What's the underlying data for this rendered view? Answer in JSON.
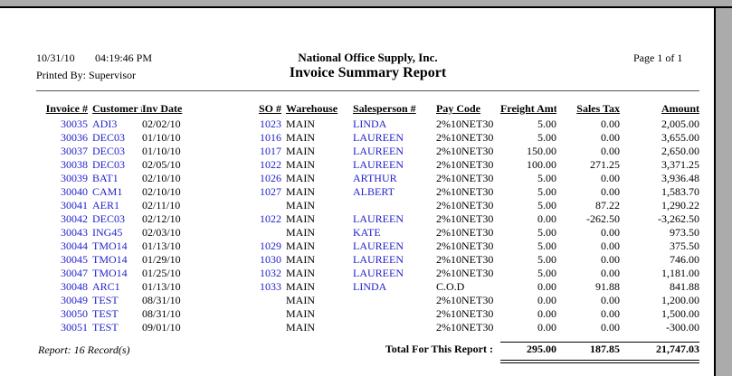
{
  "header": {
    "date": "10/31/10",
    "time": "04:19:46 PM",
    "company": "National Office Supply, Inc.",
    "page_label": "Page 1 of 1",
    "printed_by": "Printed By: Supervisor",
    "title": "Invoice Summary Report"
  },
  "table": {
    "columns": [
      "Invoice #",
      "Customer #",
      "Inv Date",
      "SO #",
      "Warehouse",
      "Salesperson #",
      "Pay Code",
      "Freight Amt",
      "Sales Tax",
      "Amount"
    ],
    "rows": [
      {
        "invoice": "30035",
        "customer": "ADI3",
        "inv_date": "02/02/10",
        "so": "1023",
        "warehouse": "MAIN",
        "salesperson": "LINDA",
        "pay_code": "2%10NET30",
        "freight": "5.00",
        "sales_tax": "0.00",
        "amount": "2,005.00"
      },
      {
        "invoice": "30036",
        "customer": "DEC03",
        "inv_date": "01/10/10",
        "so": "1016",
        "warehouse": "MAIN",
        "salesperson": "LAUREEN",
        "pay_code": "2%10NET30",
        "freight": "5.00",
        "sales_tax": "0.00",
        "amount": "3,655.00"
      },
      {
        "invoice": "30037",
        "customer": "DEC03",
        "inv_date": "01/10/10",
        "so": "1017",
        "warehouse": "MAIN",
        "salesperson": "LAUREEN",
        "pay_code": "2%10NET30",
        "freight": "150.00",
        "sales_tax": "0.00",
        "amount": "2,650.00"
      },
      {
        "invoice": "30038",
        "customer": "DEC03",
        "inv_date": "02/05/10",
        "so": "1022",
        "warehouse": "MAIN",
        "salesperson": "LAUREEN",
        "pay_code": "2%10NET30",
        "freight": "100.00",
        "sales_tax": "271.25",
        "amount": "3,371.25"
      },
      {
        "invoice": "30039",
        "customer": "BAT1",
        "inv_date": "02/10/10",
        "so": "1026",
        "warehouse": "MAIN",
        "salesperson": "ARTHUR",
        "pay_code": "2%10NET30",
        "freight": "5.00",
        "sales_tax": "0.00",
        "amount": "3,936.48"
      },
      {
        "invoice": "30040",
        "customer": "CAM1",
        "inv_date": "02/10/10",
        "so": "1027",
        "warehouse": "MAIN",
        "salesperson": "ALBERT",
        "pay_code": "2%10NET30",
        "freight": "5.00",
        "sales_tax": "0.00",
        "amount": "1,583.70"
      },
      {
        "invoice": "30041",
        "customer": "AER1",
        "inv_date": "02/11/10",
        "so": "",
        "warehouse": "MAIN",
        "salesperson": "",
        "pay_code": "2%10NET30",
        "freight": "5.00",
        "sales_tax": "87.22",
        "amount": "1,290.22"
      },
      {
        "invoice": "30042",
        "customer": "DEC03",
        "inv_date": "02/12/10",
        "so": "1022",
        "warehouse": "MAIN",
        "salesperson": "LAUREEN",
        "pay_code": "2%10NET30",
        "freight": "0.00",
        "sales_tax": "-262.50",
        "amount": "-3,262.50"
      },
      {
        "invoice": "30043",
        "customer": "ING45",
        "inv_date": "02/03/10",
        "so": "",
        "warehouse": "MAIN",
        "salesperson": "KATE",
        "pay_code": "2%10NET30",
        "freight": "5.00",
        "sales_tax": "0.00",
        "amount": "973.50"
      },
      {
        "invoice": "30044",
        "customer": "TMO14",
        "inv_date": "01/13/10",
        "so": "1029",
        "warehouse": "MAIN",
        "salesperson": "LAUREEN",
        "pay_code": "2%10NET30",
        "freight": "5.00",
        "sales_tax": "0.00",
        "amount": "375.50"
      },
      {
        "invoice": "30045",
        "customer": "TMO14",
        "inv_date": "01/29/10",
        "so": "1030",
        "warehouse": "MAIN",
        "salesperson": "LAUREEN",
        "pay_code": "2%10NET30",
        "freight": "5.00",
        "sales_tax": "0.00",
        "amount": "746.00"
      },
      {
        "invoice": "30047",
        "customer": "TMO14",
        "inv_date": "01/25/10",
        "so": "1032",
        "warehouse": "MAIN",
        "salesperson": "LAUREEN",
        "pay_code": "2%10NET30",
        "freight": "5.00",
        "sales_tax": "0.00",
        "amount": "1,181.00"
      },
      {
        "invoice": "30048",
        "customer": "ARC1",
        "inv_date": "01/13/10",
        "so": "1033",
        "warehouse": "MAIN",
        "salesperson": "LINDA",
        "pay_code": "C.O.D",
        "freight": "0.00",
        "sales_tax": "91.88",
        "amount": "841.88"
      },
      {
        "invoice": "30049",
        "customer": "TEST",
        "inv_date": "08/31/10",
        "so": "",
        "warehouse": "MAIN",
        "salesperson": "",
        "pay_code": "2%10NET30",
        "freight": "0.00",
        "sales_tax": "0.00",
        "amount": "1,200.00"
      },
      {
        "invoice": "30050",
        "customer": "TEST",
        "inv_date": "08/31/10",
        "so": "",
        "warehouse": "MAIN",
        "salesperson": "",
        "pay_code": "2%10NET30",
        "freight": "0.00",
        "sales_tax": "0.00",
        "amount": "1,500.00"
      },
      {
        "invoice": "30051",
        "customer": "TEST",
        "inv_date": "09/01/10",
        "so": "",
        "warehouse": "MAIN",
        "salesperson": "",
        "pay_code": "2%10NET30",
        "freight": "0.00",
        "sales_tax": "0.00",
        "amount": "-300.00"
      }
    ]
  },
  "footer": {
    "record_count": "Report: 16 Record(s)",
    "total_label": "Total For This Report :",
    "freight_total": "295.00",
    "sales_tax_total": "187.85",
    "amount_total": "21,747.03"
  },
  "colors": {
    "drilldown_blue": "#2222cc",
    "chrome_gray": "#ababab"
  }
}
